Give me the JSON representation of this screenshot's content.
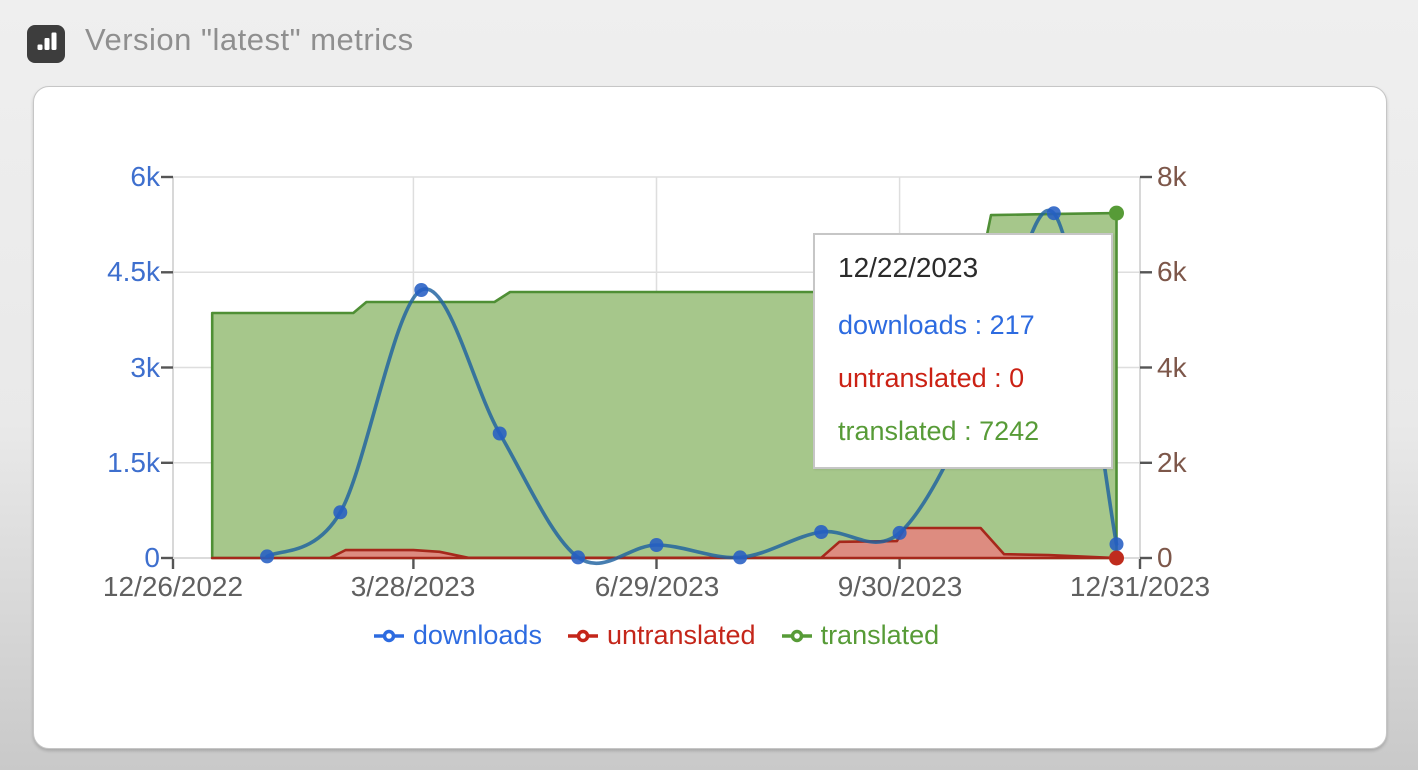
{
  "header": {
    "title": "Version \"latest\" metrics",
    "icon": "bar-chart-icon"
  },
  "legend": {
    "items": [
      {
        "label": "downloads",
        "color": "#2d6be0"
      },
      {
        "label": "untranslated",
        "color": "#c4261a"
      },
      {
        "label": "translated",
        "color": "#579b37"
      }
    ]
  },
  "tooltip": {
    "date": "12/22/2023",
    "lines": [
      {
        "series": "downloads",
        "text": "downloads : 217",
        "color": "#2d6be0"
      },
      {
        "series": "untranslated",
        "text": "untranslated : 0",
        "color": "#cb2114"
      },
      {
        "series": "translated",
        "text": "translated : 7242",
        "color": "#579b37"
      }
    ]
  },
  "chart_data": {
    "type": "line",
    "title": "Version \"latest\" metrics",
    "grid": true,
    "legend_position": "bottom",
    "x_axis": {
      "tick_labels": [
        "12/26/2022",
        "3/28/2023",
        "6/29/2023",
        "9/30/2023",
        "12/31/2023"
      ],
      "tick_dates": [
        "2022-12-26",
        "2023-03-28",
        "2023-06-29",
        "2023-09-30",
        "2023-12-31"
      ],
      "range": [
        "2022-12-26",
        "2023-12-31"
      ],
      "color": "#606060"
    },
    "y_axis_left": {
      "series": "downloads",
      "tick_labels": [
        "0",
        "1.5k",
        "3k",
        "4.5k",
        "6k"
      ],
      "range": [
        0,
        6000
      ],
      "color": "#3e6fce"
    },
    "y_axis_right": {
      "series": "translated / untranslated",
      "tick_labels": [
        "0",
        "2k",
        "4k",
        "6k",
        "8k"
      ],
      "range": [
        0,
        8000
      ],
      "color": "#7d574a"
    },
    "series": [
      {
        "name": "translated",
        "type": "area",
        "axis": "right",
        "fill": "#a6c78b",
        "stroke": "#4f8f35",
        "end_dot": "#579b37",
        "points": [
          [
            "2023-01-10",
            5145
          ],
          [
            "2023-03-05",
            5145
          ],
          [
            "2023-03-10",
            5375
          ],
          [
            "2023-04-28",
            5375
          ],
          [
            "2023-05-04",
            5585
          ],
          [
            "2023-10-29",
            5585
          ],
          [
            "2023-11-04",
            7200
          ],
          [
            "2023-11-29",
            7225
          ],
          [
            "2023-12-22",
            7242
          ]
        ]
      },
      {
        "name": "untranslated",
        "type": "area",
        "axis": "right",
        "fill": "#dd8c80",
        "stroke": "#a6281b",
        "end_dot": "#bf2c1d",
        "points": [
          [
            "2023-01-10",
            0
          ],
          [
            "2023-02-24",
            0
          ],
          [
            "2023-03-02",
            165
          ],
          [
            "2023-03-28",
            165
          ],
          [
            "2023-04-07",
            130
          ],
          [
            "2023-04-18",
            5
          ],
          [
            "2023-08-31",
            5
          ],
          [
            "2023-09-07",
            340
          ],
          [
            "2023-09-29",
            355
          ],
          [
            "2023-10-02",
            630
          ],
          [
            "2023-10-31",
            630
          ],
          [
            "2023-11-09",
            80
          ],
          [
            "2023-11-26",
            60
          ],
          [
            "2023-12-22",
            0
          ]
        ]
      },
      {
        "name": "downloads",
        "type": "line",
        "axis": "left",
        "line_color": "rgba(31,98,160,0.82)",
        "marker_color": "rgba(38,94,196,0.88)",
        "points": [
          [
            "2023-01-31",
            25
          ],
          [
            "2023-02-28",
            720
          ],
          [
            "2023-03-31",
            4220
          ],
          [
            "2023-04-30",
            1960
          ],
          [
            "2023-05-30",
            10
          ],
          [
            "2023-06-29",
            205
          ],
          [
            "2023-07-31",
            10
          ],
          [
            "2023-08-31",
            410
          ],
          [
            "2023-09-30",
            395
          ],
          [
            "2023-10-31",
            2600
          ],
          [
            "2023-11-28",
            5430
          ],
          [
            "2023-12-22",
            217
          ]
        ]
      }
    ],
    "highlighted_point": {
      "date": "12/22/2023",
      "downloads": 217,
      "untranslated": 0,
      "translated": 7242
    }
  }
}
